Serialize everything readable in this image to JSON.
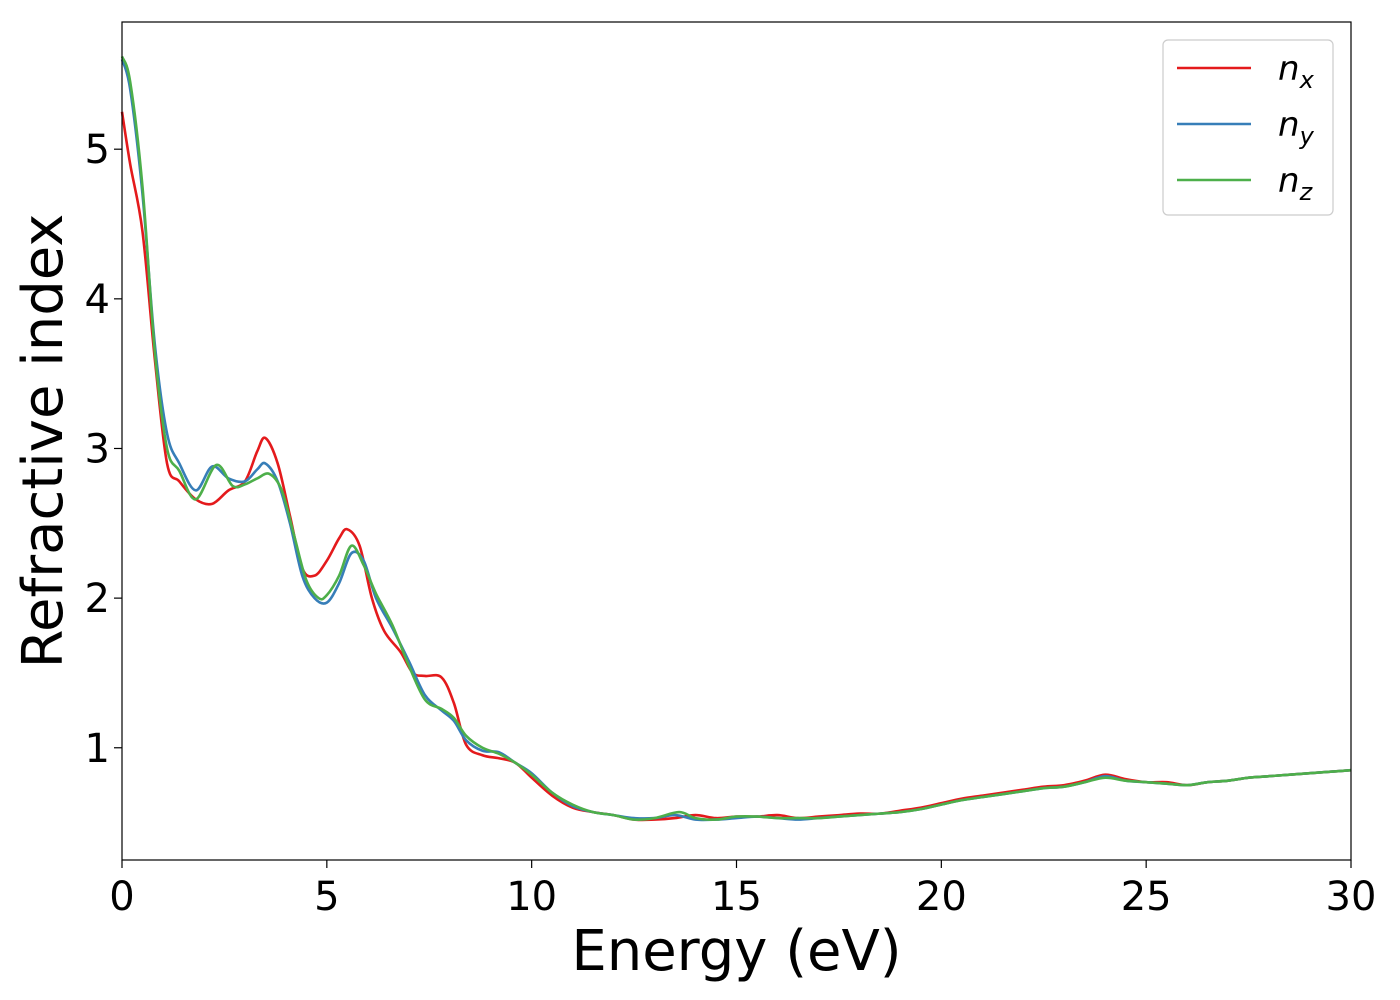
{
  "chart_data": {
    "type": "line",
    "title": "",
    "xlabel": "Energy (eV)",
    "ylabel": "Refractive index",
    "xlim": [
      0,
      30
    ],
    "ylim": [
      0.25,
      5.85
    ],
    "xticks": [
      0,
      5,
      10,
      15,
      20,
      25,
      30
    ],
    "xtick_labels": [
      "0",
      "5",
      "10",
      "15",
      "20",
      "25",
      "30"
    ],
    "yticks": [
      1,
      2,
      3,
      4,
      5
    ],
    "ytick_labels": [
      "1",
      "2",
      "3",
      "4",
      "5"
    ],
    "grid": false,
    "legend_position": "top-right",
    "series": [
      {
        "name": "n",
        "subscript": "x",
        "color": "#e41a1c",
        "x": [
          0,
          0.2,
          0.5,
          0.8,
          1.1,
          1.4,
          1.8,
          2.2,
          2.6,
          3.0,
          3.3,
          3.5,
          3.8,
          4.1,
          4.4,
          4.7,
          5.0,
          5.3,
          5.5,
          5.8,
          6.1,
          6.4,
          6.8,
          7.1,
          7.4,
          7.8,
          8.1,
          8.4,
          8.8,
          9.2,
          9.6,
          10.0,
          10.5,
          11.0,
          11.5,
          12.0,
          12.5,
          13.0,
          13.5,
          14.0,
          14.5,
          15.0,
          15.5,
          16.0,
          16.5,
          17.0,
          17.5,
          18.0,
          18.5,
          19.0,
          19.5,
          20.0,
          20.5,
          21.0,
          21.5,
          22.0,
          22.5,
          23.0,
          23.5,
          24.0,
          24.5,
          25.0,
          25.5,
          26.0,
          26.5,
          27.0,
          27.5,
          28.0,
          28.5,
          29.0,
          29.5,
          30.0
        ],
        "values": [
          5.25,
          4.9,
          4.45,
          3.6,
          2.9,
          2.78,
          2.66,
          2.63,
          2.72,
          2.78,
          2.98,
          3.07,
          2.9,
          2.55,
          2.2,
          2.15,
          2.25,
          2.4,
          2.46,
          2.35,
          2.0,
          1.78,
          1.64,
          1.5,
          1.48,
          1.47,
          1.3,
          1.02,
          0.95,
          0.93,
          0.9,
          0.8,
          0.68,
          0.6,
          0.57,
          0.55,
          0.52,
          0.52,
          0.53,
          0.55,
          0.53,
          0.54,
          0.54,
          0.55,
          0.53,
          0.54,
          0.55,
          0.56,
          0.56,
          0.58,
          0.6,
          0.63,
          0.66,
          0.68,
          0.7,
          0.72,
          0.74,
          0.75,
          0.78,
          0.82,
          0.79,
          0.77,
          0.77,
          0.75,
          0.77,
          0.78,
          0.8,
          0.81,
          0.82,
          0.83,
          0.84,
          0.85
        ]
      },
      {
        "name": "n",
        "subscript": "y",
        "color": "#377eb8",
        "x": [
          0,
          0.2,
          0.5,
          0.8,
          1.1,
          1.4,
          1.8,
          2.2,
          2.6,
          3.0,
          3.3,
          3.5,
          3.8,
          4.1,
          4.4,
          4.7,
          5.0,
          5.3,
          5.6,
          5.9,
          6.2,
          6.6,
          7.0,
          7.4,
          7.8,
          8.1,
          8.4,
          8.8,
          9.2,
          9.6,
          10.0,
          10.5,
          11.0,
          11.5,
          12.0,
          12.5,
          13.0,
          13.5,
          14.0,
          14.5,
          15.0,
          15.5,
          16.0,
          16.5,
          17.0,
          17.5,
          18.0,
          18.5,
          19.0,
          19.5,
          20.0,
          20.5,
          21.0,
          21.5,
          22.0,
          22.5,
          23.0,
          23.5,
          24.0,
          24.5,
          25.0,
          25.5,
          26.0,
          26.5,
          27.0,
          27.5,
          28.0,
          28.5,
          29.0,
          29.5,
          30.0
        ],
        "values": [
          5.6,
          5.4,
          4.7,
          3.7,
          3.1,
          2.9,
          2.72,
          2.88,
          2.8,
          2.78,
          2.86,
          2.9,
          2.78,
          2.5,
          2.15,
          2.0,
          1.97,
          2.1,
          2.3,
          2.25,
          2.0,
          1.8,
          1.58,
          1.35,
          1.25,
          1.18,
          1.05,
          0.98,
          0.97,
          0.9,
          0.83,
          0.7,
          0.61,
          0.57,
          0.55,
          0.53,
          0.53,
          0.55,
          0.52,
          0.52,
          0.53,
          0.54,
          0.53,
          0.52,
          0.53,
          0.54,
          0.55,
          0.56,
          0.57,
          0.59,
          0.62,
          0.65,
          0.67,
          0.69,
          0.71,
          0.73,
          0.74,
          0.77,
          0.81,
          0.78,
          0.77,
          0.76,
          0.75,
          0.77,
          0.78,
          0.8,
          0.81,
          0.82,
          0.83,
          0.84,
          0.85
        ]
      },
      {
        "name": "n",
        "subscript": "z",
        "color": "#4daf4a",
        "x": [
          0,
          0.2,
          0.5,
          0.8,
          1.1,
          1.4,
          1.8,
          2.3,
          2.7,
          3.0,
          3.3,
          3.6,
          3.9,
          4.2,
          4.5,
          4.8,
          5.0,
          5.3,
          5.6,
          5.9,
          6.2,
          6.6,
          7.0,
          7.4,
          7.8,
          8.1,
          8.4,
          8.8,
          9.2,
          9.6,
          10.0,
          10.5,
          11.0,
          11.5,
          12.0,
          12.5,
          13.0,
          13.6,
          14.0,
          14.5,
          15.0,
          15.5,
          16.0,
          16.5,
          17.0,
          17.5,
          18.0,
          18.5,
          19.0,
          19.5,
          20.0,
          20.5,
          21.0,
          21.5,
          22.0,
          22.5,
          23.0,
          23.5,
          24.0,
          24.5,
          25.0,
          25.5,
          26.0,
          26.5,
          27.0,
          27.5,
          28.0,
          28.5,
          29.0,
          29.5,
          30.0
        ],
        "values": [
          5.62,
          5.45,
          4.75,
          3.65,
          3.0,
          2.85,
          2.66,
          2.89,
          2.75,
          2.76,
          2.8,
          2.83,
          2.72,
          2.42,
          2.12,
          2.0,
          2.02,
          2.15,
          2.35,
          2.22,
          2.03,
          1.82,
          1.55,
          1.32,
          1.26,
          1.2,
          1.08,
          1.0,
          0.96,
          0.9,
          0.82,
          0.7,
          0.62,
          0.57,
          0.55,
          0.52,
          0.53,
          0.57,
          0.53,
          0.52,
          0.54,
          0.54,
          0.53,
          0.53,
          0.53,
          0.54,
          0.55,
          0.56,
          0.57,
          0.59,
          0.62,
          0.65,
          0.67,
          0.69,
          0.71,
          0.73,
          0.74,
          0.77,
          0.8,
          0.78,
          0.77,
          0.76,
          0.75,
          0.77,
          0.78,
          0.8,
          0.81,
          0.82,
          0.83,
          0.84,
          0.85
        ]
      }
    ]
  }
}
